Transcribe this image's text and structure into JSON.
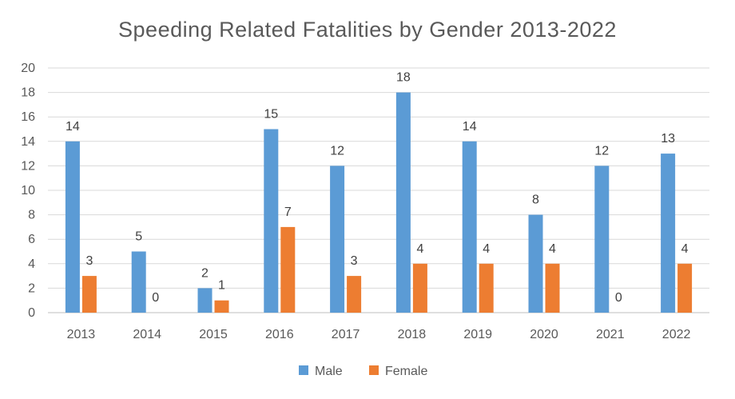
{
  "chart_data": {
    "type": "bar",
    "title": "Speeding Related Fatalities by Gender 2013-2022",
    "xlabel": "",
    "ylabel": "",
    "categories": [
      "2013",
      "2014",
      "2015",
      "2016",
      "2017",
      "2018",
      "2019",
      "2020",
      "2021",
      "2022"
    ],
    "series": [
      {
        "name": "Male",
        "color": "#5B9BD5",
        "values": [
          14,
          5,
          2,
          15,
          12,
          18,
          14,
          8,
          12,
          13
        ]
      },
      {
        "name": "Female",
        "color": "#ED7D31",
        "values": [
          3,
          0,
          1,
          7,
          3,
          4,
          4,
          4,
          0,
          4
        ]
      }
    ],
    "ylim": [
      0,
      20
    ],
    "yticks": [
      0,
      2,
      4,
      6,
      8,
      10,
      12,
      14,
      16,
      18,
      20
    ],
    "grid": true,
    "legend_position": "bottom",
    "data_labels": true
  }
}
